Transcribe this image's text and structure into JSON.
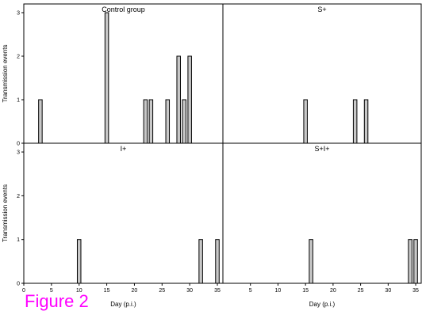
{
  "figure_label": "Figure 2",
  "colors": {
    "bar_fill": "#c8c8c8",
    "bar_stroke": "#000000",
    "figure_label": "#ff00ff"
  },
  "chart_data": [
    {
      "type": "bar",
      "title": "Control group",
      "xlabel": "",
      "ylabel": "Transmission events",
      "xlim": [
        0,
        36
      ],
      "ylim": [
        0,
        3.2
      ],
      "yticks": [
        0,
        1,
        2,
        3
      ],
      "x": [
        3,
        15,
        22,
        23,
        26,
        28,
        29,
        30
      ],
      "values": [
        1,
        3,
        1,
        1,
        1,
        2,
        1,
        2
      ]
    },
    {
      "type": "bar",
      "title": "S+",
      "xlabel": "",
      "ylabel": "",
      "xlim": [
        0,
        36
      ],
      "ylim": [
        0,
        3.2
      ],
      "yticks": [],
      "x": [
        15,
        24,
        26
      ],
      "values": [
        1,
        1,
        1
      ]
    },
    {
      "type": "bar",
      "title": "I+",
      "xlabel": "Day (p.i.)",
      "ylabel": "Transmission events",
      "xlim": [
        0,
        36
      ],
      "ylim": [
        0,
        3.2
      ],
      "yticks": [
        0,
        1,
        2,
        3
      ],
      "xticks": [
        0,
        5,
        10,
        15,
        20,
        25,
        30,
        35
      ],
      "x": [
        10,
        32,
        35
      ],
      "values": [
        1,
        1,
        1
      ]
    },
    {
      "type": "bar",
      "title": "S+I+",
      "xlabel": "Day (p.i.)",
      "ylabel": "",
      "xlim": [
        0,
        36
      ],
      "ylim": [
        0,
        3.2
      ],
      "yticks": [],
      "xticks": [
        5,
        10,
        15,
        20,
        25,
        30,
        35
      ],
      "x": [
        16,
        34,
        35
      ],
      "values": [
        1,
        1,
        1
      ]
    }
  ]
}
